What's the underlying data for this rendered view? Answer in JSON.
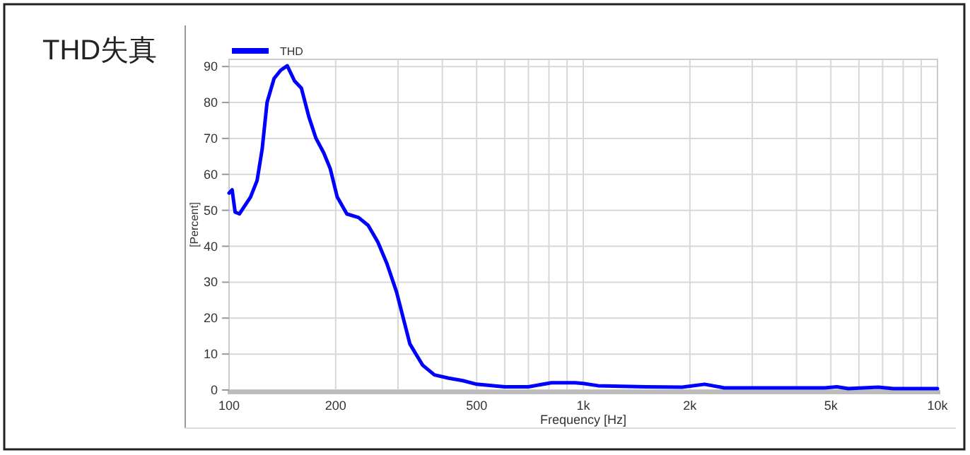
{
  "chart_data": {
    "type": "line",
    "title": "THD失真",
    "xlabel": "Frequency [Hz]",
    "ylabel": "[Percent]",
    "x": [
      100,
      102,
      104,
      107,
      115,
      120,
      124,
      128,
      134,
      140,
      146,
      153,
      160,
      168,
      176,
      185,
      193,
      202,
      215,
      232,
      247,
      263,
      279,
      297,
      309,
      324,
      336,
      352,
      380,
      417,
      457,
      500,
      600,
      700,
      813,
      950,
      1000,
      1100,
      1500,
      1900,
      2200,
      2500,
      4800,
      5200,
      5600,
      6800,
      7500,
      10000
    ],
    "series": [
      {
        "name": "THD",
        "color": "#0000ff",
        "values": [
          54.8,
          55.7,
          49.5,
          49,
          53.7,
          58.3,
          67,
          80,
          86.7,
          89,
          90.2,
          86,
          84,
          76,
          70,
          66,
          61.6,
          53.7,
          49,
          48,
          45.8,
          41.2,
          35.2,
          27.3,
          20.7,
          12.8,
          10.2,
          6.9,
          4.2,
          3.3,
          2.6,
          1.6,
          0.9,
          0.9,
          2,
          2,
          1.8,
          1.2,
          0.9,
          0.8,
          1.6,
          0.6,
          0.6,
          0.9,
          0.4,
          0.8,
          0.4,
          0.4
        ]
      }
    ],
    "log": "x",
    "xlim": [
      100,
      10000
    ],
    "ylim": [
      0,
      92
    ],
    "xticks": [
      100,
      200,
      500,
      {
        "value": 1000,
        "label": "1k"
      },
      {
        "value": 2000,
        "label": "2k"
      },
      {
        "value": 5000,
        "label": "5k"
      },
      {
        "value": 10000,
        "label": "10k"
      }
    ],
    "yticks": [
      0,
      10,
      20,
      30,
      40,
      50,
      60,
      70,
      80,
      90
    ],
    "grid": true,
    "legend": "top left"
  }
}
